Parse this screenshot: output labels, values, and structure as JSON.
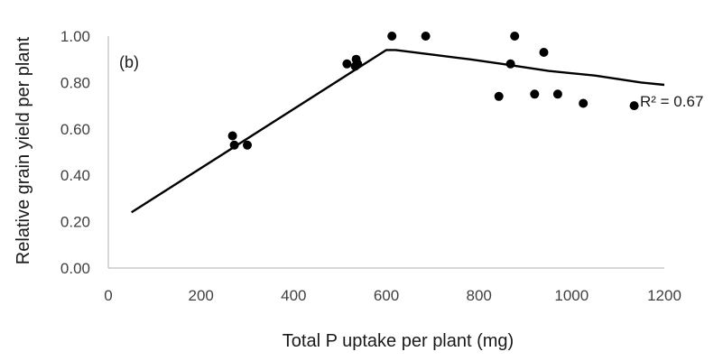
{
  "chart_data": {
    "type": "scatter",
    "panel_label": "(b)",
    "xlabel": "Total P uptake per plant (mg)",
    "ylabel": "Relative grain yield per plant",
    "xlim": [
      0,
      1200
    ],
    "ylim": [
      0,
      1.0
    ],
    "x_ticks": [
      "0",
      "200",
      "400",
      "600",
      "800",
      "1000",
      "1200"
    ],
    "y_ticks": [
      "0.00",
      "0.20",
      "0.40",
      "0.60",
      "0.80",
      "1.00"
    ],
    "grid": false,
    "legend": "none",
    "series": [
      {
        "type": "scatter",
        "points": [
          {
            "x": 268,
            "y": 0.57
          },
          {
            "x": 272,
            "y": 0.53
          },
          {
            "x": 300,
            "y": 0.53
          },
          {
            "x": 515,
            "y": 0.88
          },
          {
            "x": 533,
            "y": 0.87
          },
          {
            "x": 535,
            "y": 0.9
          },
          {
            "x": 538,
            "y": 0.88
          },
          {
            "x": 612,
            "y": 1.0
          },
          {
            "x": 685,
            "y": 1.0
          },
          {
            "x": 843,
            "y": 0.74
          },
          {
            "x": 868,
            "y": 0.88
          },
          {
            "x": 877,
            "y": 1.0
          },
          {
            "x": 920,
            "y": 0.75
          },
          {
            "x": 940,
            "y": 0.93
          },
          {
            "x": 970,
            "y": 0.75
          },
          {
            "x": 1025,
            "y": 0.71
          },
          {
            "x": 1135,
            "y": 0.7
          }
        ]
      },
      {
        "type": "line",
        "points": [
          {
            "x": 50,
            "y": 0.24
          },
          {
            "x": 600,
            "y": 0.94
          },
          {
            "x": 620,
            "y": 0.94
          },
          {
            "x": 700,
            "y": 0.92
          },
          {
            "x": 780,
            "y": 0.9
          },
          {
            "x": 850,
            "y": 0.88
          },
          {
            "x": 950,
            "y": 0.85
          },
          {
            "x": 1050,
            "y": 0.83
          },
          {
            "x": 1150,
            "y": 0.8
          },
          {
            "x": 1200,
            "y": 0.79
          }
        ]
      }
    ],
    "annotation": "R² = 0.67",
    "colors": {
      "marker": "#000000",
      "line": "#000000",
      "axis": "#bfbfbf",
      "text": "#404040"
    }
  }
}
